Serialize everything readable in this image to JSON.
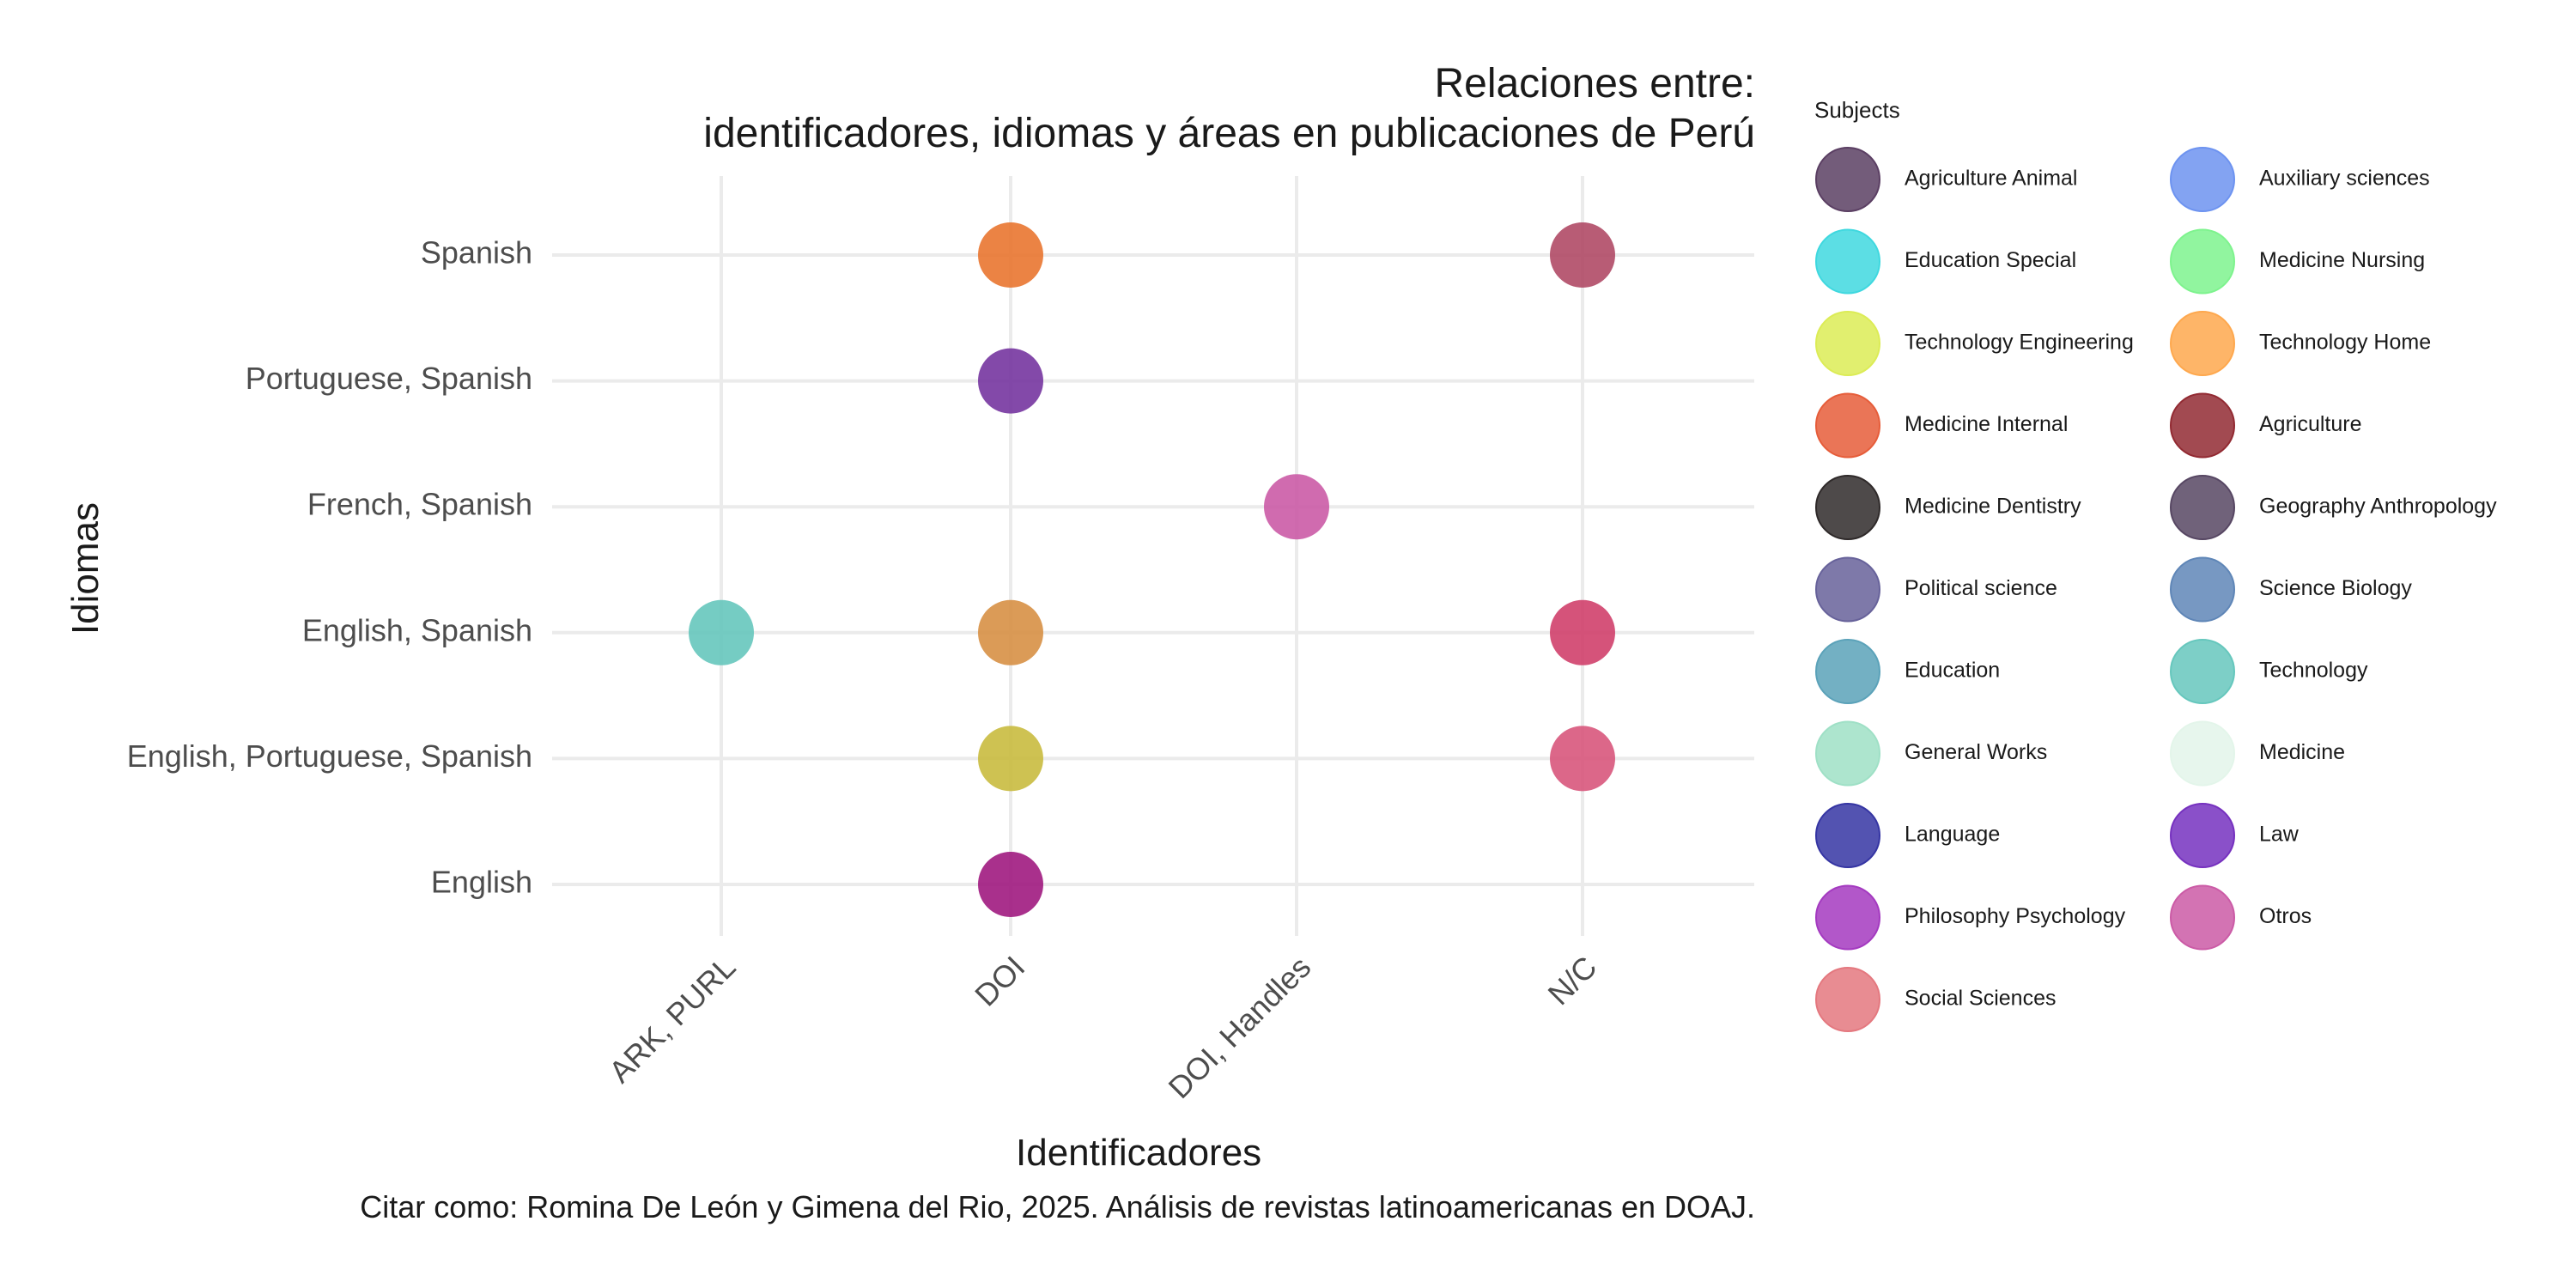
{
  "chart_data": {
    "type": "scatter",
    "title_line1": "Relaciones entre:",
    "title_line2": "identificadores, idiomas y áreas en publicaciones de Perú",
    "xlabel": "Identificadores",
    "ylabel": "Idiomas",
    "caption": "Citar como: Romina De León y Gimena del Rio, 2025. Análisis de revistas latinoamericanas en DOAJ.",
    "x_categories": [
      "ARK, PURL",
      "DOI",
      "DOI, Handles",
      "N/C"
    ],
    "y_categories": [
      "English",
      "English, Portuguese, Spanish",
      "English, Spanish",
      "French, Spanish",
      "Portuguese, Spanish",
      "Spanish"
    ],
    "grid": true,
    "legend_position": "right",
    "legend_title": "Subjects",
    "legend": [
      {
        "name": "Agriculture Animal",
        "color": "#5b3f63"
      },
      {
        "name": "Auxiliary sciences",
        "color": "#6d93f0"
      },
      {
        "name": "Education Special",
        "color": "#3fd8df"
      },
      {
        "name": "Medicine Nursing",
        "color": "#7ef38e"
      },
      {
        "name": "Technology Engineering",
        "color": "#dcec56"
      },
      {
        "name": "Technology Home",
        "color": "#fea84e"
      },
      {
        "name": "Medicine Internal",
        "color": "#e65d3a"
      },
      {
        "name": "Agriculture",
        "color": "#922a32"
      },
      {
        "name": "Medicine Dentistry",
        "color": "#2f2a2a"
      },
      {
        "name": "Geography Anthropology",
        "color": "#574763"
      },
      {
        "name": "Political science",
        "color": "#67629a"
      },
      {
        "name": "Science Biology",
        "color": "#5f86b7"
      },
      {
        "name": "Education",
        "color": "#5ba2b9"
      },
      {
        "name": "Technology",
        "color": "#66c7bd"
      },
      {
        "name": "General Works",
        "color": "#9fe0c6"
      },
      {
        "name": "Medicine",
        "color": "#e3f5ea"
      },
      {
        "name": "Language",
        "color": "#3535a3"
      },
      {
        "name": "Law",
        "color": "#7631bf"
      },
      {
        "name": "Philosophy Psychology",
        "color": "#a43ac0"
      },
      {
        "name": "Otros",
        "color": "#cb5ba6"
      },
      {
        "name": "Social Sciences",
        "color": "#e4787f"
      }
    ],
    "points": [
      {
        "x": "DOI",
        "y": "Spanish",
        "color": "#e97630"
      },
      {
        "x": "N/C",
        "y": "Spanish",
        "color": "#b04a66"
      },
      {
        "x": "DOI",
        "y": "Portuguese, Spanish",
        "color": "#7535a0"
      },
      {
        "x": "DOI, Handles",
        "y": "French, Spanish",
        "color": "#cb5ba6"
      },
      {
        "x": "ARK, PURL",
        "y": "English, Spanish",
        "color": "#66c7bd"
      },
      {
        "x": "DOI",
        "y": "English, Spanish",
        "color": "#d79045"
      },
      {
        "x": "N/C",
        "y": "English, Spanish",
        "color": "#d0406c"
      },
      {
        "x": "DOI",
        "y": "English, Portuguese, Spanish",
        "color": "#c9bb3f"
      },
      {
        "x": "N/C",
        "y": "English, Portuguese, Spanish",
        "color": "#d8577c"
      },
      {
        "x": "DOI",
        "y": "English",
        "color": "#a01a80"
      }
    ]
  }
}
